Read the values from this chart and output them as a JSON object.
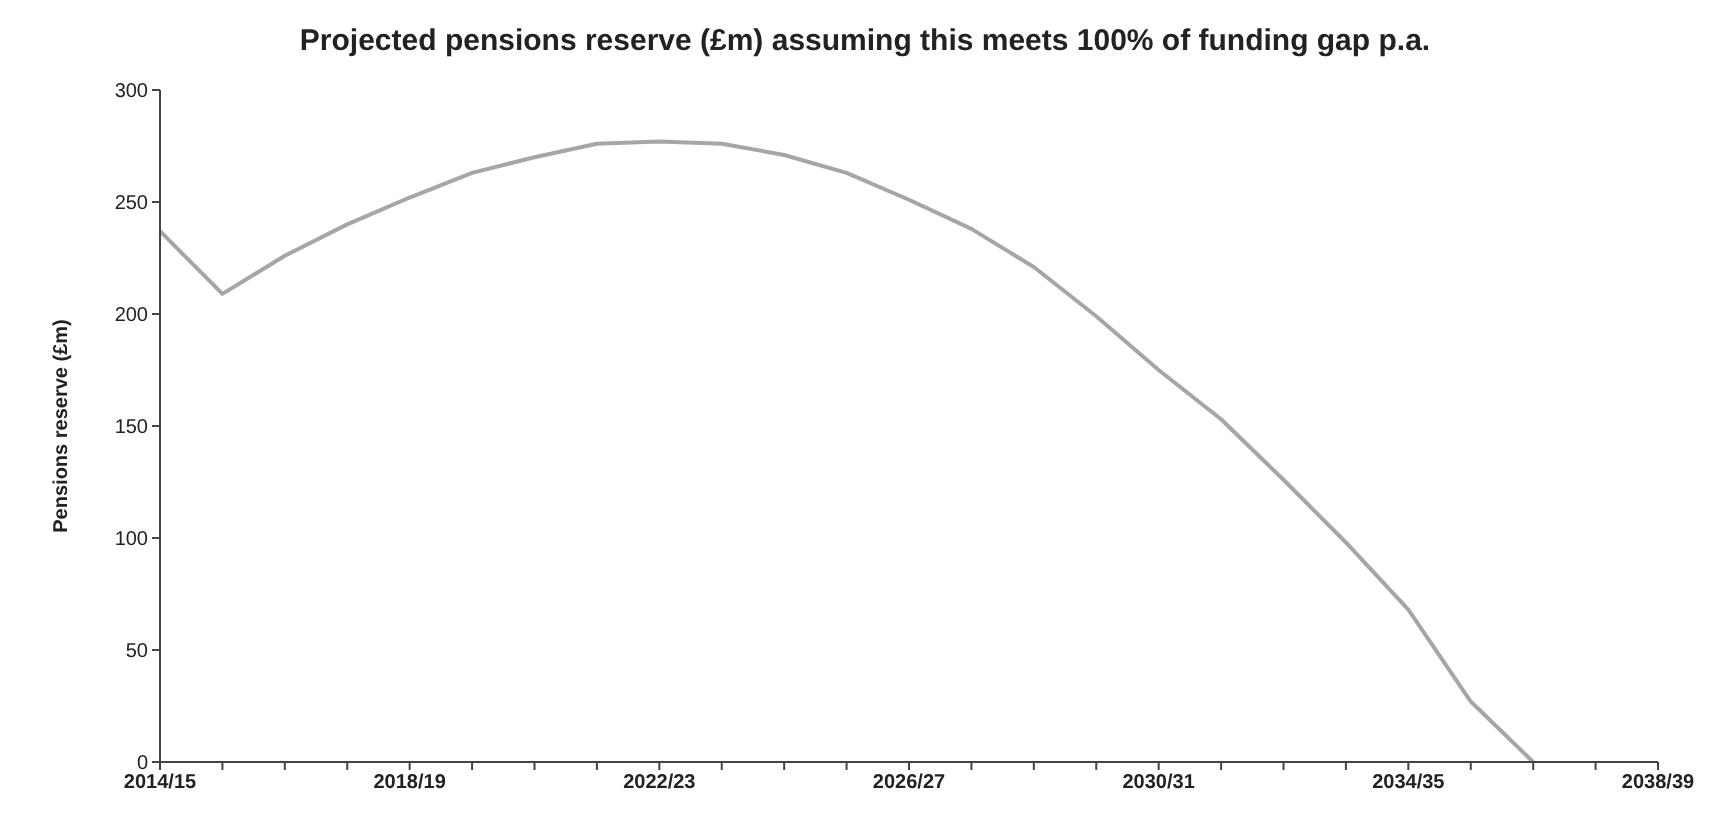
{
  "chart_data": {
    "type": "line",
    "title": "Projected pensions reserve (£m) assuming this meets 100% of funding gap p.a.",
    "ylabel": "Pensions reserve (£m)",
    "categories": [
      "2014/15",
      null,
      null,
      null,
      "2018/19",
      null,
      null,
      null,
      "2022/23",
      null,
      null,
      null,
      "2026/27",
      null,
      null,
      null,
      "2030/31",
      null,
      null,
      null,
      "2034/35",
      null,
      null,
      null,
      "2038/39"
    ],
    "series": [
      {
        "color": "#a6a6a6",
        "values": [
          237,
          209,
          226,
          240,
          252,
          263,
          270,
          276,
          277,
          276,
          271,
          263,
          251,
          238,
          221,
          199,
          175,
          153,
          126,
          98,
          68,
          27,
          0,
          null,
          null
        ]
      }
    ],
    "ylim": [
      0,
      300
    ],
    "yticks": [
      0,
      50,
      100,
      150,
      200,
      250,
      300
    ],
    "grid": false,
    "legend": false,
    "marker": "none",
    "line_style": "solid"
  }
}
